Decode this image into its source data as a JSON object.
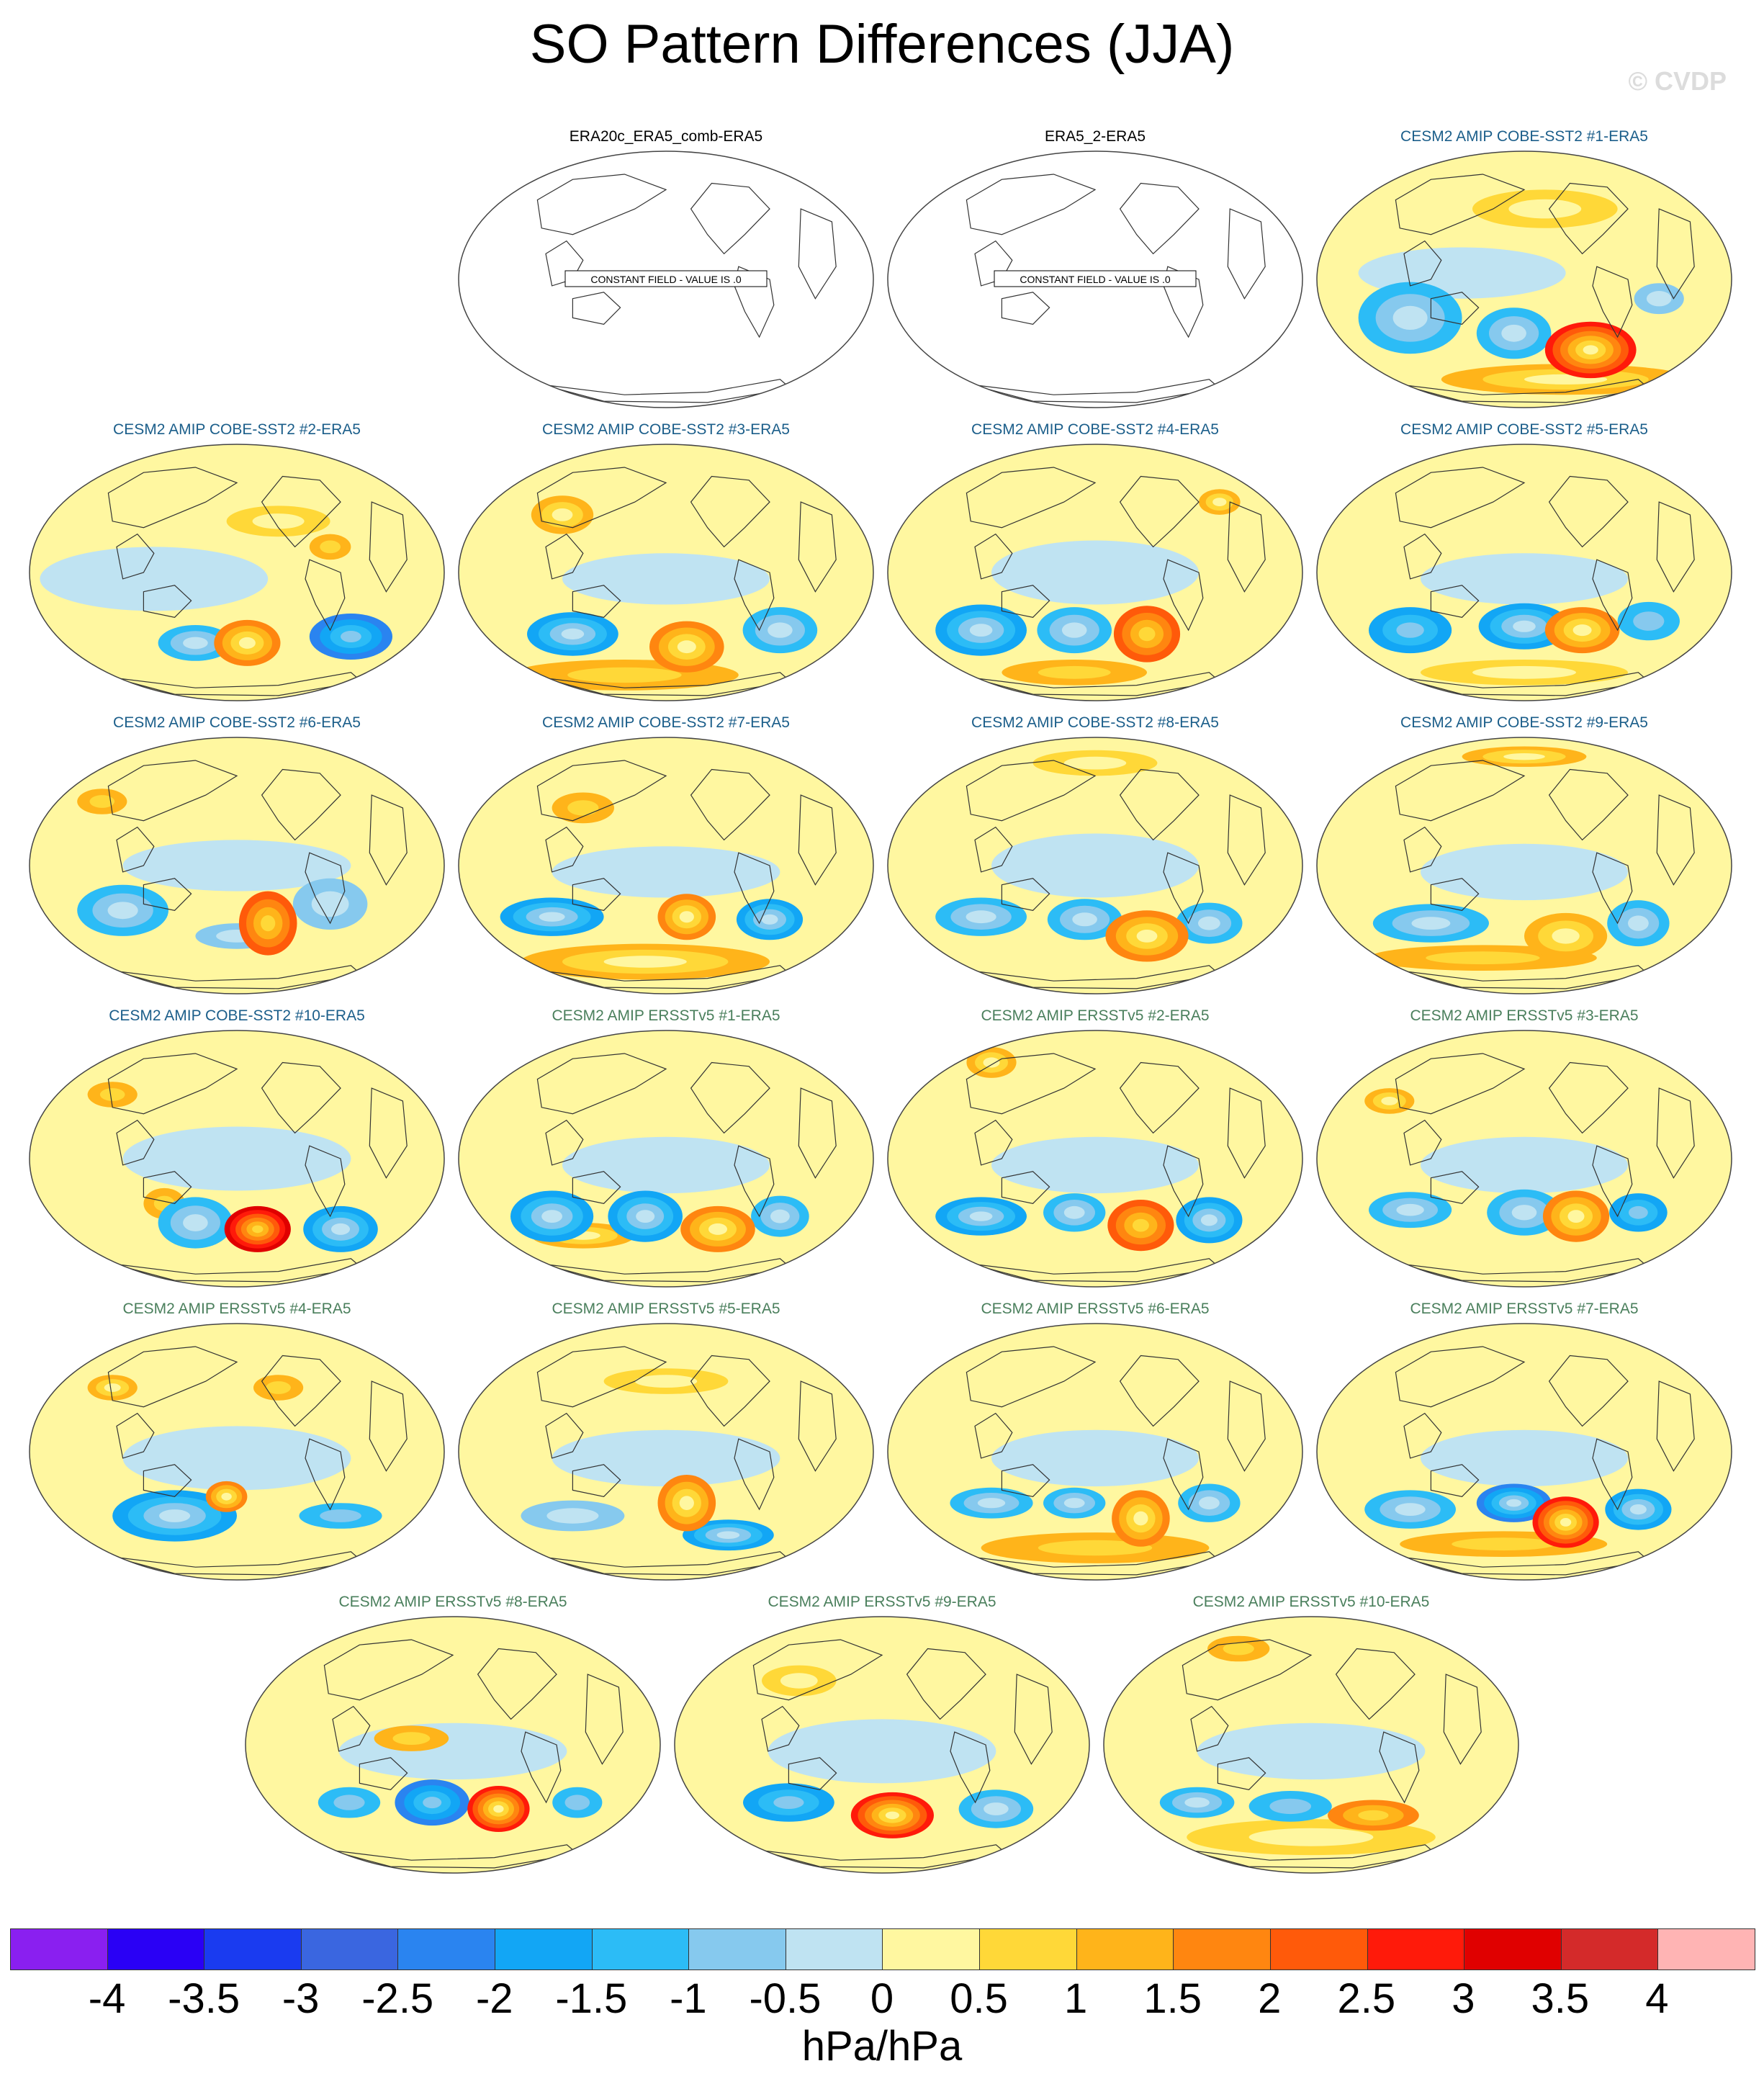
{
  "title": "SO Pattern Differences (JJA)",
  "watermark": "© CVDP",
  "constant_field_label": "CONSTANT FIELD - VALUE IS .0",
  "colors": {
    "obs_title": "#000000",
    "cobe_title": "#1b5e8a",
    "ersst_title": "#4a7f5c"
  },
  "panels": [
    {
      "title": "ERA20c_ERA5_comb-ERA5",
      "group": "obs",
      "constant": true
    },
    {
      "title": "ERA5_2-ERA5",
      "group": "obs",
      "constant": true
    },
    {
      "title": "CESM2 AMIP COBE-SST2 #1-ERA5",
      "group": "cobe",
      "constant": false
    },
    {
      "title": "CESM2 AMIP COBE-SST2 #2-ERA5",
      "group": "cobe",
      "constant": false
    },
    {
      "title": "CESM2 AMIP COBE-SST2 #3-ERA5",
      "group": "cobe",
      "constant": false
    },
    {
      "title": "CESM2 AMIP COBE-SST2 #4-ERA5",
      "group": "cobe",
      "constant": false
    },
    {
      "title": "CESM2 AMIP COBE-SST2 #5-ERA5",
      "group": "cobe",
      "constant": false
    },
    {
      "title": "CESM2 AMIP COBE-SST2 #6-ERA5",
      "group": "cobe",
      "constant": false
    },
    {
      "title": "CESM2 AMIP COBE-SST2 #7-ERA5",
      "group": "cobe",
      "constant": false
    },
    {
      "title": "CESM2 AMIP COBE-SST2 #8-ERA5",
      "group": "cobe",
      "constant": false
    },
    {
      "title": "CESM2 AMIP COBE-SST2 #9-ERA5",
      "group": "cobe",
      "constant": false
    },
    {
      "title": "CESM2 AMIP COBE-SST2 #10-ERA5",
      "group": "cobe",
      "constant": false
    },
    {
      "title": "CESM2 AMIP ERSSTv5 #1-ERA5",
      "group": "ersst",
      "constant": false
    },
    {
      "title": "CESM2 AMIP ERSSTv5 #2-ERA5",
      "group": "ersst",
      "constant": false
    },
    {
      "title": "CESM2 AMIP ERSSTv5 #3-ERA5",
      "group": "ersst",
      "constant": false
    },
    {
      "title": "CESM2 AMIP ERSSTv5 #4-ERA5",
      "group": "ersst",
      "constant": false
    },
    {
      "title": "CESM2 AMIP ERSSTv5 #5-ERA5",
      "group": "ersst",
      "constant": false
    },
    {
      "title": "CESM2 AMIP ERSSTv5 #6-ERA5",
      "group": "ersst",
      "constant": false
    },
    {
      "title": "CESM2 AMIP ERSSTv5 #7-ERA5",
      "group": "ersst",
      "constant": false
    },
    {
      "title": "CESM2 AMIP ERSSTv5 #8-ERA5",
      "group": "ersst",
      "constant": false
    },
    {
      "title": "CESM2 AMIP ERSSTv5 #9-ERA5",
      "group": "ersst",
      "constant": false
    },
    {
      "title": "CESM2 AMIP ERSSTv5 #10-ERA5",
      "group": "ersst",
      "constant": false
    }
  ],
  "colorbar": {
    "labels": [
      "-4",
      "-3.5",
      "-3",
      "-2.5",
      "-2",
      "-1.5",
      "-1",
      "-0.5",
      "0",
      "0.5",
      "1",
      "1.5",
      "2",
      "2.5",
      "3",
      "3.5",
      "4"
    ],
    "colors": [
      "#8a1ff0",
      "#2a00f5",
      "#1a3bf0",
      "#3a66e0",
      "#2a84f0",
      "#12a6f5",
      "#2cbcf6",
      "#86c9ee",
      "#bfe3f2",
      "#fff7a0",
      "#ffd838",
      "#ffb41a",
      "#ff8610",
      "#ff5a0a",
      "#ff1a0a",
      "#e00000",
      "#d42a2a",
      "#ffb4b4"
    ],
    "units": "hPa/hPa"
  }
}
